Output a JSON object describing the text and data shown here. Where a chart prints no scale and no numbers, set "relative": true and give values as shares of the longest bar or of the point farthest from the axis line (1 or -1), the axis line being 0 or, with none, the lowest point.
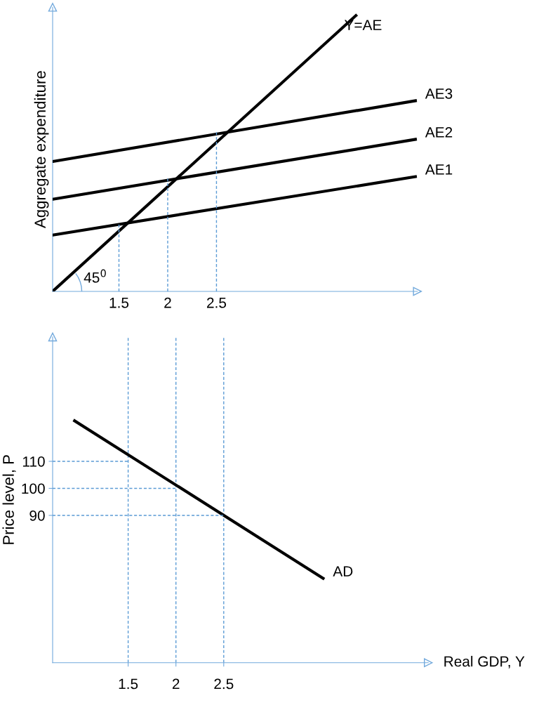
{
  "chart_data": [
    {
      "type": "line",
      "relative": true,
      "ylabel": "Aggregate expenditure",
      "xlim": [
        0.82,
        4.56
      ],
      "xticks": [
        1.5,
        2,
        2.5
      ],
      "legend": false,
      "grid": false,
      "marker": "none",
      "annotations": [
        "45$^{0}$"
      ],
      "series": [
        {
          "name": "Y=AE",
          "color": "#000000",
          "x": [
            0.82,
            3.93
          ],
          "values": [
            0,
            1
          ]
        },
        {
          "name": "AE3",
          "color": "#000000",
          "x": [
            0.82,
            4.54
          ],
          "values": [
            0.471,
            0.691
          ]
        },
        {
          "name": "AE2",
          "color": "#000000",
          "x": [
            0.82,
            4.54
          ],
          "values": [
            0.334,
            0.551
          ]
        },
        {
          "name": "AE1",
          "color": "#000000",
          "x": [
            0.82,
            4.54
          ],
          "values": [
            0.204,
            0.416
          ]
        },
        {
          "color": "#5b9bd5",
          "line_style": "dashed",
          "x": [
            1.5,
            1.5
          ],
          "values": [
            0,
            0.244
          ]
        },
        {
          "color": "#5b9bd5",
          "line_style": "dashed",
          "x": [
            2,
            2
          ],
          "values": [
            0,
            0.411
          ]
        },
        {
          "color": "#5b9bd5",
          "line_style": "dashed",
          "x": [
            2.5,
            2.5
          ],
          "values": [
            0,
            0.579
          ]
        }
      ]
    },
    {
      "type": "line",
      "ylabel": "Price level, P",
      "xlabel": "Real GDP, Y",
      "xlim": [
        0.71,
        4.64
      ],
      "ylim": [
        35.5,
        156
      ],
      "xticks": [
        1.5,
        2,
        2.5
      ],
      "yticks": [
        90,
        100,
        110
      ],
      "legend": false,
      "grid": false,
      "marker": "none",
      "ref_lines": [
        {
          "axis": "x",
          "value": 1.5,
          "color": "#5b9bd5",
          "line_style": "dashed"
        },
        {
          "axis": "x",
          "value": 2,
          "color": "#5b9bd5",
          "line_style": "dashed"
        },
        {
          "axis": "x",
          "value": 2.5,
          "color": "#5b9bd5",
          "line_style": "dashed"
        }
      ],
      "series": [
        {
          "name": "AD",
          "color": "#000000",
          "x": [
            0.94,
            3.54
          ],
          "values": [
            125,
            66.7
          ]
        },
        {
          "color": "#5b9bd5",
          "line_style": "dashed",
          "x": [
            0.71,
            1.5
          ],
          "values": [
            110,
            110
          ]
        },
        {
          "color": "#5b9bd5",
          "line_style": "dashed",
          "x": [
            0.71,
            2
          ],
          "values": [
            100,
            100
          ]
        },
        {
          "color": "#5b9bd5",
          "line_style": "dashed",
          "x": [
            0.71,
            2.5
          ],
          "values": [
            90,
            90
          ]
        }
      ]
    }
  ]
}
